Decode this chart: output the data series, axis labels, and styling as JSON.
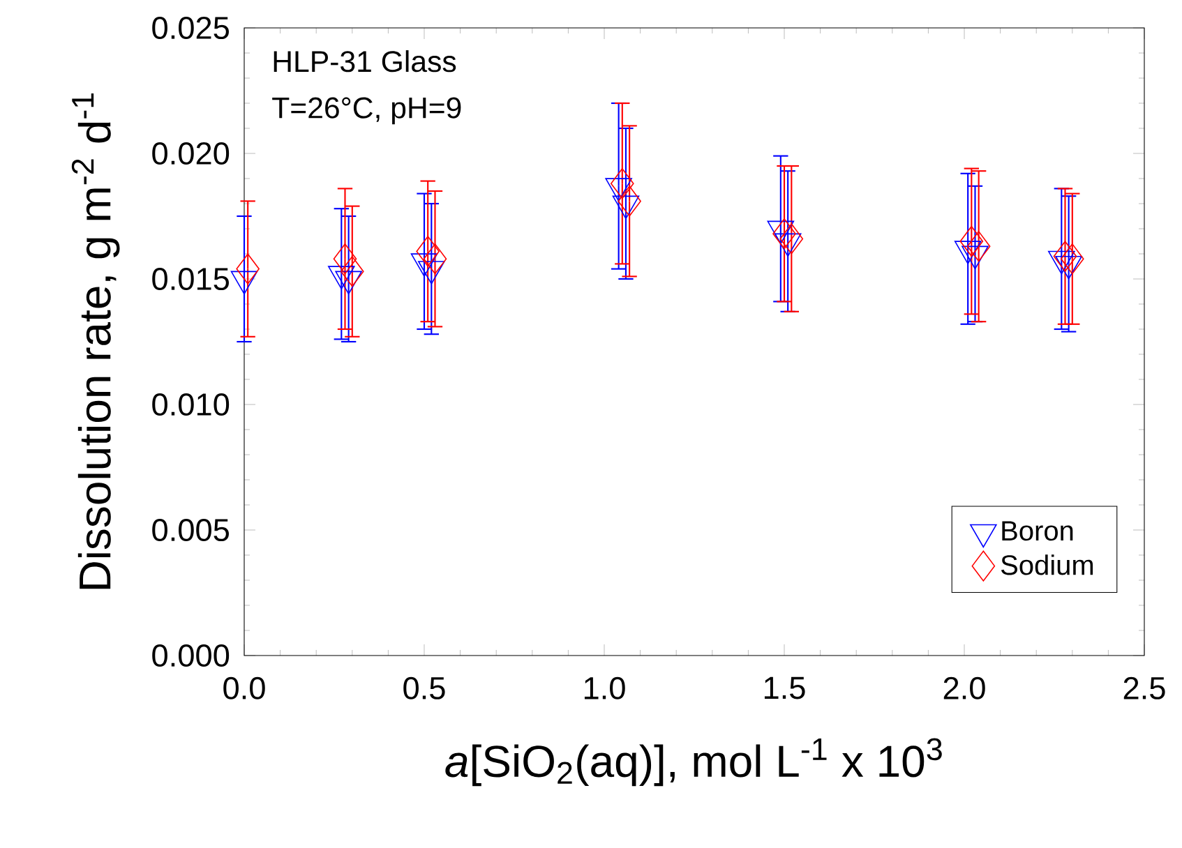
{
  "chart_data": {
    "type": "scatter",
    "xlabel": "*a*[SiO$_{2}$(aq)], mol L$^{-1}$ x 10$^{3}$",
    "ylabel": "Dissolution rate, g m$^{-2}$ d$^{-1}$",
    "annotations": [
      "HLP-31 Glass",
      "T=26°C, pH=9"
    ],
    "xlim": [
      0,
      2.5
    ],
    "ylim": [
      0,
      0.025
    ],
    "xticks": [
      {
        "value": 0,
        "label": "0.0"
      },
      {
        "value": 0.5,
        "label": "0.5"
      },
      {
        "value": 1,
        "label": "1.0"
      },
      {
        "value": 1.5,
        "label": "1.5"
      },
      {
        "value": 2,
        "label": "2.0"
      },
      {
        "value": 2.5,
        "label": "2.5"
      }
    ],
    "yticks": [
      {
        "value": 0,
        "label": "0.000"
      },
      {
        "value": 0.005,
        "label": "0.005"
      },
      {
        "value": 0.01,
        "label": "0.010"
      },
      {
        "value": 0.015,
        "label": "0.015"
      },
      {
        "value": 0.02,
        "label": "0.020"
      },
      {
        "value": 0.025,
        "label": "0.025"
      }
    ],
    "legend": "bottom right",
    "grid": false,
    "series": [
      {
        "name": "Boron",
        "color": "#0000ff",
        "marker": "triangle",
        "x": [
          0,
          0.27,
          0.29,
          0.5,
          0.52,
          1.04,
          1.06,
          1.49,
          1.51,
          2.01,
          2.03,
          2.27,
          2.29
        ],
        "values": [
          0.015,
          0.0152,
          0.015,
          0.0157,
          0.0154,
          0.0187,
          0.018,
          0.017,
          0.0165,
          0.0162,
          0.016,
          0.0158,
          0.0156
        ],
        "errors": [
          0.0025,
          0.0026,
          0.0025,
          0.0027,
          0.0026,
          0.0033,
          0.003,
          0.0029,
          0.0028,
          0.003,
          0.0027,
          0.0028,
          0.0027
        ]
      },
      {
        "name": "Sodium",
        "color": "#ff0000",
        "marker": "diamond",
        "x": [
          0.01,
          0.28,
          0.3,
          0.51,
          0.53,
          1.05,
          1.07,
          1.5,
          1.52,
          2.02,
          2.04,
          2.28,
          2.3
        ],
        "values": [
          0.0154,
          0.0158,
          0.0153,
          0.0161,
          0.0158,
          0.0188,
          0.0181,
          0.0168,
          0.0166,
          0.0165,
          0.0163,
          0.0159,
          0.0158
        ],
        "errors": [
          0.0027,
          0.0028,
          0.0026,
          0.0028,
          0.0027,
          0.0032,
          0.003,
          0.0027,
          0.0029,
          0.0029,
          0.003,
          0.0027,
          0.0026
        ]
      }
    ]
  }
}
